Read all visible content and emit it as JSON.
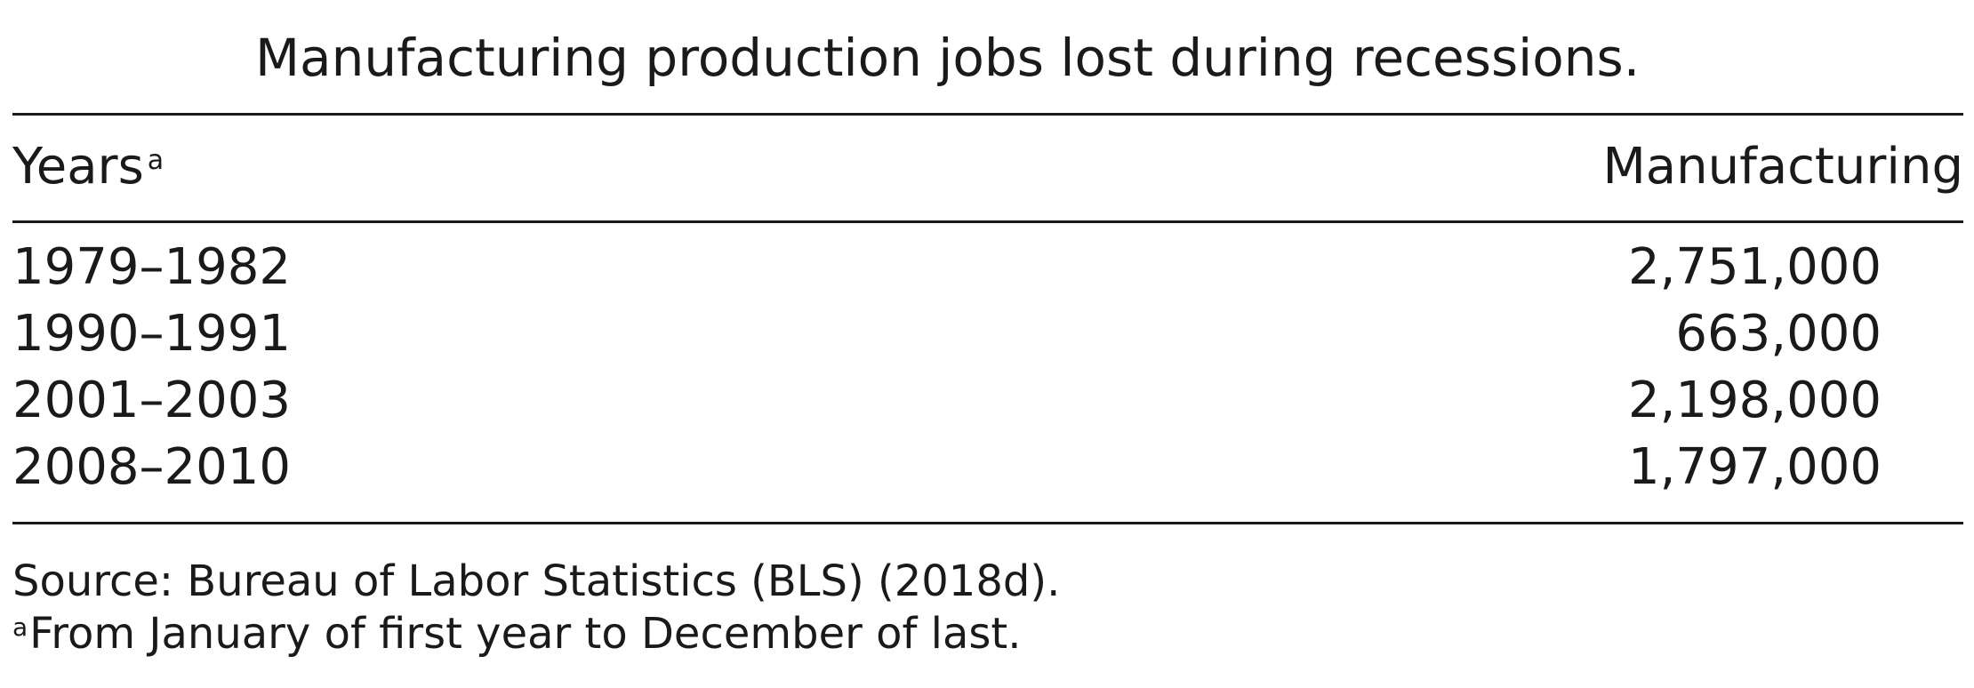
{
  "table": {
    "title": "Manufacturing production jobs lost during recessions.",
    "header": {
      "years_label": "Years",
      "years_marker": "a",
      "manufacturing_label": "Manufacturing"
    },
    "rows": [
      {
        "years": "1979–1982",
        "manufacturing": "2,751,000"
      },
      {
        "years": "1990–1991",
        "manufacturing": "663,000"
      },
      {
        "years": "2001–2003",
        "manufacturing": "2,198,000"
      },
      {
        "years": "2008–2010",
        "manufacturing": "1,797,000"
      }
    ],
    "source": "Source: Bureau of Labor Statistics (BLS) (2018d).",
    "footnote_marker": "a",
    "footnote": "From January of first year to December of last."
  }
}
